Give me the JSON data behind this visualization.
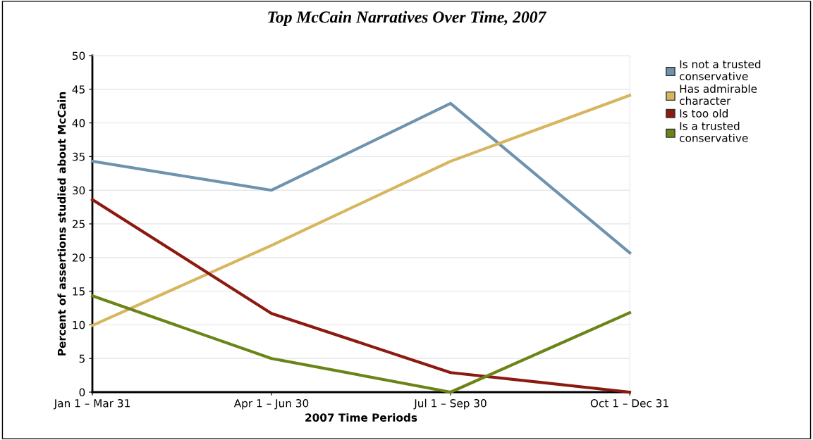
{
  "chart_data": {
    "type": "line",
    "title": "Top McCain Narratives Over Time, 2007",
    "xlabel": "2007 Time Periods",
    "ylabel": "Percent of assertions studied about McCain",
    "categories": [
      "Jan 1 – Mar 31",
      "Apr 1 – Jun 30",
      "Jul 1 – Sep 30",
      "Oct 1 – Dec 31"
    ],
    "series": [
      {
        "name": "Is not a trusted conservative",
        "color": "#6e93ae",
        "values": [
          34.3,
          30.0,
          42.9,
          20.7
        ]
      },
      {
        "name": "Has admirable character",
        "color": "#d6b65e",
        "values": [
          9.9,
          21.8,
          34.3,
          44.1
        ]
      },
      {
        "name": "Is too old",
        "color": "#8b1a10",
        "values": [
          28.6,
          11.7,
          2.9,
          0
        ]
      },
      {
        "name": "Is a trusted conservative",
        "color": "#6b8418",
        "values": [
          14.3,
          5.0,
          0,
          11.8
        ]
      }
    ],
    "ylim": [
      0,
      50
    ],
    "yticks": [
      0,
      5,
      10,
      15,
      20,
      25,
      30,
      35,
      40,
      45,
      50
    ],
    "grid": "y",
    "legend": "top right",
    "marker": "none",
    "line_style": "solid"
  }
}
